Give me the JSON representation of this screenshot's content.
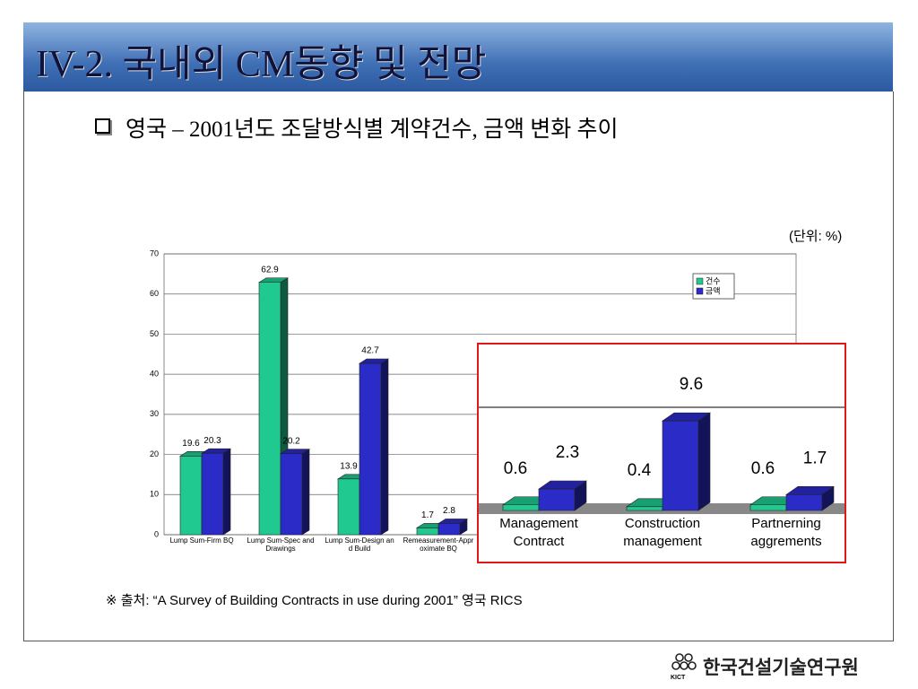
{
  "header": {
    "title": "IV-2. 국내외 CM동향 및 전망"
  },
  "subtitle": "영국 – 2001년도 조달방식별 계약건수, 금액 변화 추이",
  "unit_note": "(단위: %)",
  "chart_data": {
    "type": "bar",
    "three_d": true,
    "categories": [
      "Lump Sum-Firm BQ",
      "Lump Sum-Spec and Drawings",
      "Lump Sum-Design and Build",
      "Remeasurement-Approximate BQ",
      "Management Contract",
      "Construction management",
      "Partnerning aggrements"
    ],
    "series": [
      {
        "name": "건수",
        "color": "#1fc98f",
        "values": [
          19.6,
          62.9,
          13.9,
          1.7,
          0.6,
          0.4,
          0.6
        ]
      },
      {
        "name": "금액",
        "color": "#2b2bc8",
        "values": [
          20.3,
          20.2,
          42.7,
          2.8,
          2.3,
          9.6,
          1.7
        ]
      }
    ],
    "ylim": [
      0,
      70
    ],
    "yticks": [
      0,
      10,
      20,
      30,
      40,
      50,
      60,
      70
    ],
    "grid": true,
    "legend": "upper right"
  },
  "source": "※ 출처: “A Survey of Building Contracts in use during 2001” 영국 RICS",
  "logo": {
    "name": "한국건설기술연구원",
    "abbr": "KICT"
  }
}
